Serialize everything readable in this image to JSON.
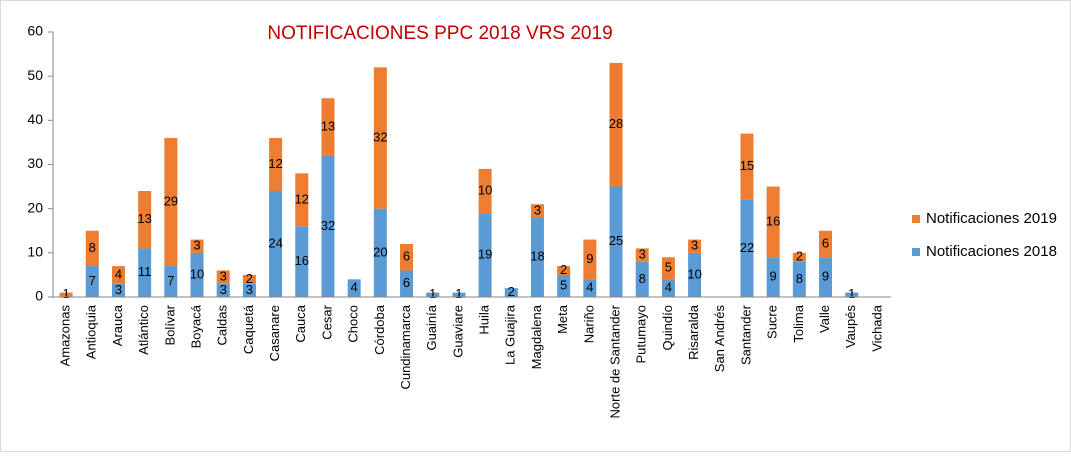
{
  "chart_data": {
    "type": "stacked_bar",
    "title": "NOTIFICACIONES PPC 2018 VRS 2019",
    "categories": [
      "Amazonas",
      "Antioquia",
      "Arauca",
      "Atlántico",
      "Bolívar",
      "Boyacá",
      "Caldas",
      "Caquetá",
      "Casanare",
      "Cauca",
      "Cesar",
      "Choco",
      "Córdoba",
      "Cundinamarca",
      "Guainía",
      "Guaviare",
      "Huila",
      "La Guajira",
      "Magdalena",
      "Meta",
      "Nariño",
      "Norte de Santander",
      "Putumayo",
      "Quindío",
      "Risaralda",
      "San Andrés",
      "Santander",
      "Sucre",
      "Tolima",
      "Valle",
      "Vaupés",
      "Vichada"
    ],
    "series": [
      {
        "name": "Notificaciones 2018",
        "color": "#5b9bd5",
        "values": [
          null,
          7,
          3,
          11,
          7,
          10,
          3,
          3,
          24,
          16,
          32,
          4,
          20,
          6,
          1,
          1,
          19,
          2,
          18,
          5,
          4,
          25,
          8,
          4,
          10,
          null,
          22,
          9,
          8,
          9,
          1,
          null
        ]
      },
      {
        "name": "Notificaciones 2019",
        "color": "#ed7d31",
        "values": [
          1,
          8,
          4,
          13,
          29,
          3,
          3,
          2,
          12,
          12,
          13,
          null,
          32,
          6,
          null,
          null,
          10,
          null,
          3,
          2,
          9,
          28,
          3,
          5,
          3,
          null,
          15,
          16,
          2,
          6,
          null,
          null
        ]
      }
    ],
    "ylim": [
      0,
      60
    ],
    "yticks": [
      0,
      10,
      20,
      30,
      40,
      50,
      60
    ],
    "grid": false,
    "legend": "right"
  }
}
